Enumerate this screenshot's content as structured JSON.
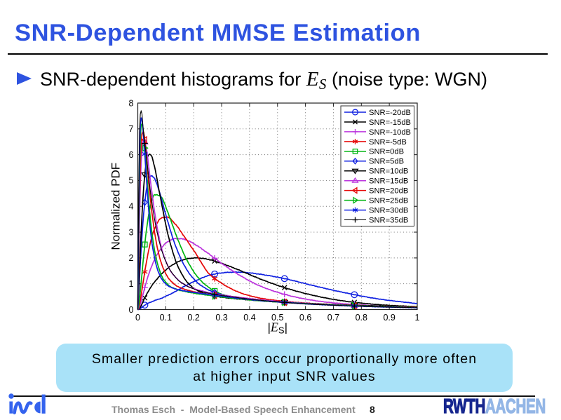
{
  "slide": {
    "title": "SNR-Dependent MMSE Estimation",
    "title_color": "#2e53e0",
    "bullet": {
      "text_before": "SNR-dependent histograms for",
      "math_base": "E",
      "math_sub": "S",
      "text_after": "(noise type: WGN)"
    },
    "callout": {
      "line1": "Smaller prediction errors occur proportionally more often",
      "line2": "at higher input SNR values",
      "bg_color": "#a9e2f8"
    },
    "footer": {
      "credit": "Thomas Esch  -  Model-Based Speech Enhancement",
      "page_number": "8"
    },
    "logos": {
      "left_text": "ind",
      "right_primary": "RWTH",
      "right_secondary": "AACHEN",
      "rwth_dark": "#17278f",
      "rwth_light": "#93b6e6",
      "ind_blue": "#3463ee"
    }
  },
  "chart_data": {
    "type": "line",
    "title": "",
    "xlabel_parts": {
      "prefix": "|",
      "base": "E",
      "sub": "S",
      "suffix": "|"
    },
    "ylabel": "Normalized PDF",
    "xlim": [
      0,
      1
    ],
    "ylim": [
      0,
      8
    ],
    "xticks": [
      0,
      0.1,
      0.2,
      0.3,
      0.4,
      0.5,
      0.6,
      0.7,
      0.8,
      0.9,
      1
    ],
    "xtick_labels": [
      "0",
      "0.1",
      "0.2",
      "0.3",
      "0.4",
      "0.5",
      "0.6",
      "0.7",
      "0.8",
      "0.9",
      "1"
    ],
    "yticks": [
      0,
      1,
      2,
      3,
      4,
      5,
      6,
      7,
      8
    ],
    "ytick_labels": [
      "0",
      "1",
      "2",
      "3",
      "4",
      "5",
      "6",
      "7",
      "8"
    ],
    "grid": true,
    "legend_position": "top-right",
    "marker_x": [
      0.025,
      0.275,
      0.525,
      0.775
    ],
    "x_samples": [
      0,
      0.004,
      0.008,
      0.013,
      0.02,
      0.03,
      0.045,
      0.06,
      0.08,
      0.105,
      0.135,
      0.17,
      0.21,
      0.25,
      0.3,
      0.36,
      0.43,
      0.525,
      0.62,
      0.72,
      0.85,
      1.0
    ],
    "series": [
      {
        "label": "SNR=-20dB",
        "color": "#1021e0",
        "marker": "circle",
        "y": [
          0,
          0.01,
          0.03,
          0.07,
          0.13,
          0.21,
          0.28,
          0.35,
          0.42,
          0.54,
          0.7,
          0.92,
          1.13,
          1.31,
          1.42,
          1.45,
          1.38,
          1.2,
          0.95,
          0.7,
          0.43,
          0.23
        ]
      },
      {
        "label": "SNR=-15dB",
        "color": "#000000",
        "marker": "x",
        "y": [
          0.0,
          0.02,
          0.08,
          0.17,
          0.34,
          0.56,
          0.84,
          1.07,
          1.32,
          1.58,
          1.8,
          1.95,
          2.0,
          1.95,
          1.79,
          1.54,
          1.22,
          0.85,
          0.57,
          0.36,
          0.2,
          0.11
        ]
      },
      {
        "label": "SNR=-10dB",
        "color": "#bb33dd",
        "marker": "plus",
        "y": [
          0.0,
          0.06,
          0.17,
          0.36,
          0.65,
          1.05,
          1.55,
          1.94,
          2.32,
          2.61,
          2.75,
          2.71,
          2.49,
          2.19,
          1.79,
          1.36,
          0.95,
          0.59,
          0.37,
          0.24,
          0.15,
          0.09
        ]
      },
      {
        "label": "SNR=-5dB",
        "color": "#e60707",
        "marker": "star",
        "y": [
          0,
          0.1,
          0.3,
          0.62,
          1.11,
          1.79,
          2.59,
          3.13,
          3.51,
          3.58,
          3.3,
          2.77,
          2.13,
          1.45,
          1.02,
          0.68,
          0.46,
          0.32,
          0.24,
          0.19,
          0.14,
          0.11
        ]
      },
      {
        "label": "SNR=0dB",
        "color": "#00b511",
        "marker": "square",
        "y": [
          0.0,
          0.21,
          0.58,
          1.16,
          1.98,
          3.0,
          4.01,
          4.44,
          4.41,
          3.84,
          2.95,
          2.04,
          1.32,
          0.89,
          0.6,
          0.44,
          0.35,
          0.28,
          0.22,
          0.18,
          0.14,
          0.1
        ]
      },
      {
        "label": "SNR=5dB",
        "color": "#1021e0",
        "marker": "diamond",
        "y": [
          0.0,
          0.76,
          1.58,
          2.51,
          3.58,
          4.59,
          5.17,
          5.08,
          4.46,
          3.49,
          2.47,
          1.64,
          1.08,
          0.78,
          0.58,
          0.46,
          0.37,
          0.29,
          0.23,
          0.18,
          0.13,
          0.09
        ]
      },
      {
        "label": "SNR=10dB",
        "color": "#000000",
        "marker": "tri-down",
        "y": [
          0.0,
          0.93,
          2.02,
          3.24,
          4.57,
          5.67,
          6.02,
          5.52,
          4.4,
          3.05,
          1.91,
          1.16,
          0.76,
          0.59,
          0.48,
          0.41,
          0.35,
          0.28,
          0.23,
          0.18,
          0.14,
          0.1
        ]
      },
      {
        "label": "SNR=15dB",
        "color": "#bb33dd",
        "marker": "tri-up",
        "y": [
          0,
          2.3,
          4.4,
          5.9,
          6.55,
          6.3,
          5.0,
          3.8,
          2.6,
          1.75,
          1.25,
          0.95,
          0.78,
          0.67,
          0.57,
          0.48,
          0.39,
          0.3,
          0.23,
          0.17,
          0.12,
          0.08
        ]
      },
      {
        "label": "SNR=20dB",
        "color": "#e60707",
        "marker": "tri-left",
        "y": [
          0,
          2.8,
          5.2,
          6.6,
          6.9,
          6.0,
          4.3,
          3.0,
          1.95,
          1.3,
          0.95,
          0.78,
          0.67,
          0.59,
          0.51,
          0.44,
          0.36,
          0.28,
          0.22,
          0.17,
          0.12,
          0.09
        ]
      },
      {
        "label": "SNR=25dB",
        "color": "#00b511",
        "marker": "tri-right",
        "y": [
          0,
          3.6,
          6.2,
          7.2,
          6.9,
          5.5,
          3.5,
          2.3,
          1.45,
          1.0,
          0.8,
          0.7,
          0.62,
          0.56,
          0.49,
          0.42,
          0.35,
          0.28,
          0.22,
          0.17,
          0.12,
          0.08
        ]
      },
      {
        "label": "SNR=30dB",
        "color": "#1021e0",
        "marker": "asterisk",
        "y": [
          0,
          4.4,
          6.9,
          7.45,
          6.8,
          5.2,
          3.1,
          2.0,
          1.3,
          0.95,
          0.8,
          0.72,
          0.65,
          0.59,
          0.52,
          0.44,
          0.36,
          0.28,
          0.21,
          0.16,
          0.11,
          0.07
        ]
      },
      {
        "label": "SNR=35dB",
        "color": "#000000",
        "marker": "vplus",
        "y": [
          0,
          5.6,
          7.4,
          7.7,
          6.9,
          6.0,
          4.6,
          3.5,
          2.5,
          1.75,
          1.25,
          0.95,
          0.76,
          0.64,
          0.55,
          0.46,
          0.37,
          0.28,
          0.21,
          0.16,
          0.11,
          0.07
        ]
      }
    ]
  }
}
